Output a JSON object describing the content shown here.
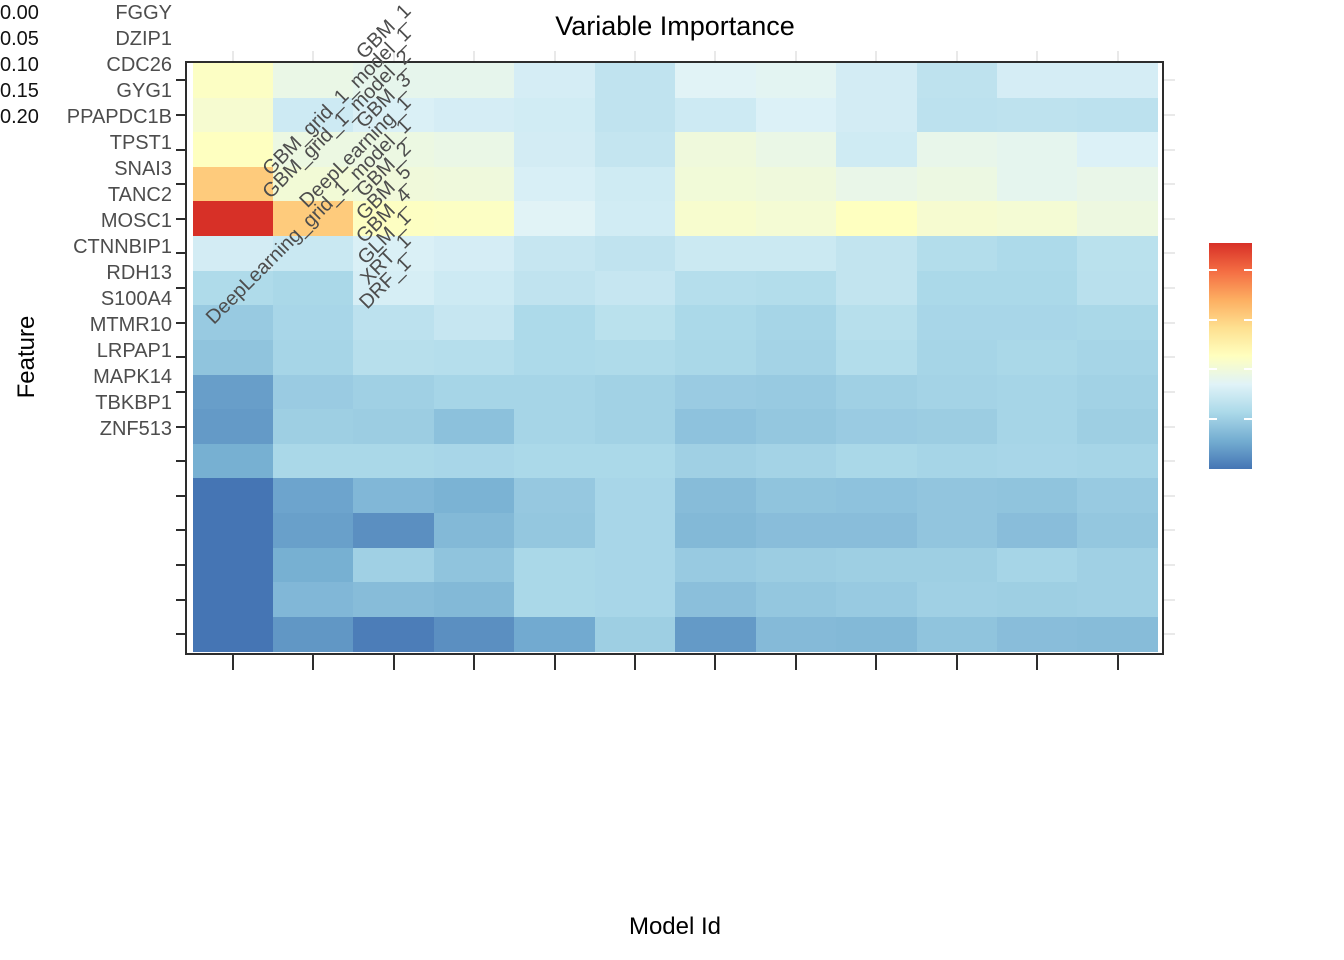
{
  "title": "Variable Importance",
  "x_axis": {
    "label": "Model Id",
    "categories": [
      "GBM_1",
      "GBM_grid_1_model_1",
      "GBM_grid_1_model_2",
      "GBM_3",
      "DeepLearning_1",
      "DeepLearning_grid_1_model_1",
      "GBM_2",
      "GBM_5",
      "GBM_4",
      "GLM_1",
      "XRT_1",
      "DRF_1"
    ]
  },
  "y_axis": {
    "label": "Feature",
    "categories": [
      "FGGY",
      "DZIP1",
      "CDC26",
      "GYG1",
      "PPAPDC1B",
      "TPST1",
      "SNAI3",
      "TANC2",
      "MOSC1",
      "CTNNBIP1",
      "RDH13",
      "S100A4",
      "MTMR10",
      "LRPAP1",
      "MAPK14",
      "TBKBP1",
      "ZNF513"
    ]
  },
  "legend": {
    "vmin": 0.0,
    "vmax": 0.227,
    "tick_values": [
      0.0,
      0.05,
      0.1,
      0.15,
      0.2
    ],
    "tick_labels": [
      "0.00",
      "0.05",
      "0.10",
      "0.15",
      "0.20"
    ],
    "palette": [
      "#4575b4",
      "#74add1",
      "#abd9e9",
      "#e0f3f8",
      "#ffffbf",
      "#fee090",
      "#fdae61",
      "#f46d43",
      "#d73027"
    ]
  },
  "chart_data": {
    "type": "heatmap",
    "title": "Variable Importance",
    "xlabel": "Model Id",
    "ylabel": "Feature",
    "legend_position": "right",
    "value_range": [
      0.0,
      0.227
    ],
    "x": [
      "GBM_1",
      "GBM_grid_1_model_1",
      "GBM_grid_1_model_2",
      "GBM_3",
      "DeepLearning_1",
      "DeepLearning_grid_1_model_1",
      "GBM_2",
      "GBM_5",
      "GBM_4",
      "GLM_1",
      "XRT_1",
      "DRF_1"
    ],
    "y": [
      "FGGY",
      "DZIP1",
      "CDC26",
      "GYG1",
      "PPAPDC1B",
      "TPST1",
      "SNAI3",
      "TANC2",
      "MOSC1",
      "CTNNBIP1",
      "RDH13",
      "S100A4",
      "MTMR10",
      "LRPAP1",
      "MAPK14",
      "TBKBP1",
      "ZNF513"
    ],
    "values": [
      [
        0.111,
        0.094,
        0.091,
        0.091,
        0.079,
        0.068,
        0.086,
        0.088,
        0.078,
        0.067,
        0.079,
        0.079
      ],
      [
        0.105,
        0.075,
        0.082,
        0.079,
        0.077,
        0.068,
        0.075,
        0.083,
        0.078,
        0.066,
        0.067,
        0.066
      ],
      [
        0.113,
        0.096,
        0.096,
        0.094,
        0.078,
        0.07,
        0.099,
        0.094,
        0.076,
        0.092,
        0.09,
        0.083
      ],
      [
        0.154,
        0.102,
        0.1,
        0.099,
        0.081,
        0.076,
        0.101,
        0.099,
        0.093,
        0.096,
        0.09,
        0.093
      ],
      [
        0.227,
        0.154,
        0.112,
        0.111,
        0.086,
        0.077,
        0.106,
        0.103,
        0.113,
        0.105,
        0.103,
        0.097
      ],
      [
        0.078,
        0.073,
        0.082,
        0.079,
        0.071,
        0.068,
        0.074,
        0.074,
        0.069,
        0.061,
        0.058,
        0.065
      ],
      [
        0.059,
        0.056,
        0.08,
        0.075,
        0.068,
        0.071,
        0.062,
        0.061,
        0.069,
        0.057,
        0.057,
        0.064
      ],
      [
        0.047,
        0.055,
        0.066,
        0.071,
        0.058,
        0.065,
        0.057,
        0.054,
        0.063,
        0.055,
        0.055,
        0.056
      ],
      [
        0.043,
        0.054,
        0.063,
        0.062,
        0.058,
        0.059,
        0.056,
        0.053,
        0.061,
        0.054,
        0.056,
        0.054
      ],
      [
        0.021,
        0.048,
        0.051,
        0.054,
        0.054,
        0.052,
        0.048,
        0.047,
        0.051,
        0.053,
        0.054,
        0.052
      ],
      [
        0.019,
        0.05,
        0.049,
        0.041,
        0.054,
        0.052,
        0.042,
        0.045,
        0.048,
        0.049,
        0.054,
        0.05
      ],
      [
        0.03,
        0.056,
        0.056,
        0.055,
        0.057,
        0.057,
        0.051,
        0.053,
        0.056,
        0.054,
        0.055,
        0.054
      ],
      [
        0.0,
        0.024,
        0.035,
        0.032,
        0.046,
        0.055,
        0.038,
        0.043,
        0.042,
        0.044,
        0.043,
        0.047
      ],
      [
        0.0,
        0.022,
        0.013,
        0.036,
        0.045,
        0.055,
        0.036,
        0.039,
        0.039,
        0.044,
        0.039,
        0.045
      ],
      [
        0.0,
        0.03,
        0.051,
        0.043,
        0.056,
        0.055,
        0.047,
        0.049,
        0.05,
        0.05,
        0.054,
        0.051
      ],
      [
        0.0,
        0.035,
        0.038,
        0.036,
        0.056,
        0.055,
        0.04,
        0.045,
        0.047,
        0.051,
        0.05,
        0.051
      ],
      [
        0.0,
        0.017,
        0.004,
        0.013,
        0.027,
        0.05,
        0.019,
        0.037,
        0.036,
        0.043,
        0.039,
        0.038
      ]
    ]
  }
}
